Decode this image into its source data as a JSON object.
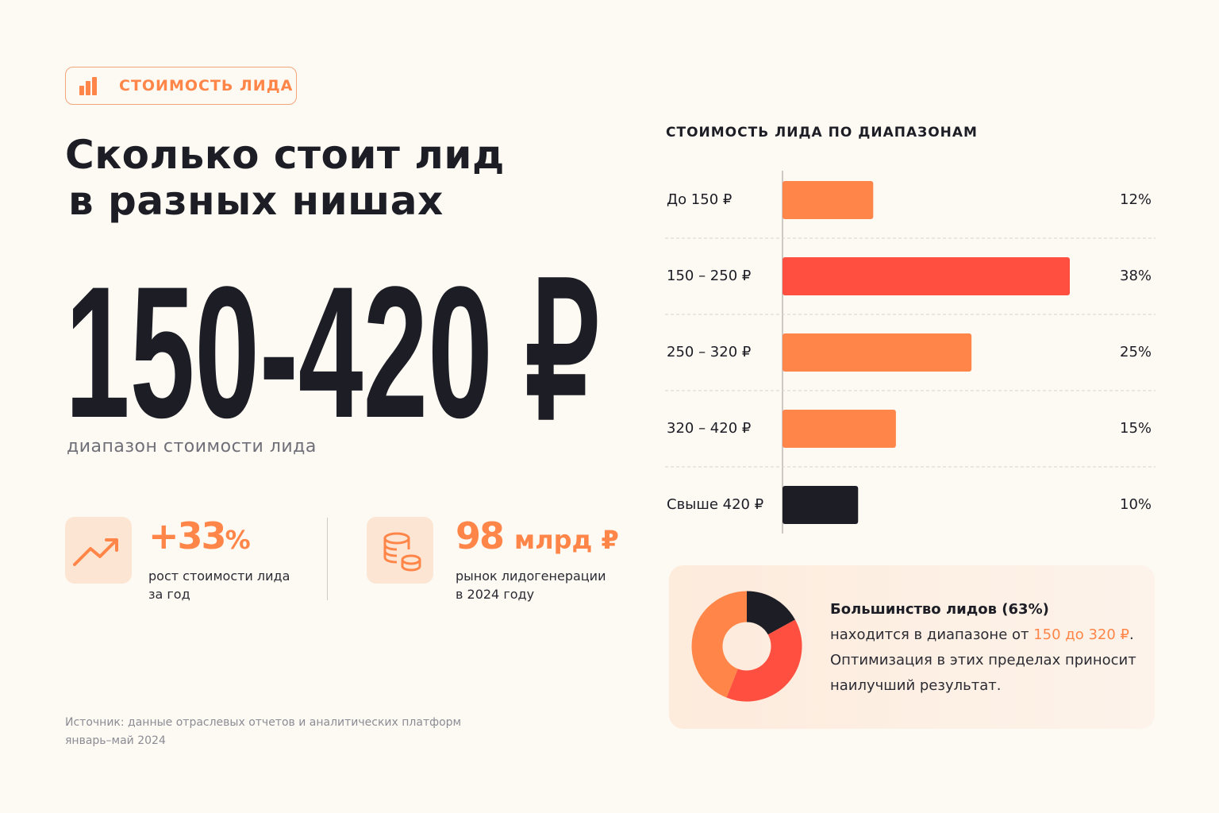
{
  "badge": "СТОИМОСТЬ ЛИДА",
  "title": [
    "Сколько стоит лид",
    "в разных нишах"
  ],
  "hero": {
    "value": "150-420 ₽",
    "caption": "диапазон стоимости лида"
  },
  "stats": [
    {
      "value": "+33",
      "unit": "%",
      "description": [
        "рост стоимости лида",
        "за год"
      ]
    },
    {
      "value": "98",
      "unit": "млрд ₽",
      "description": [
        "рынок лидогенерации",
        "в 2024 году"
      ]
    }
  ],
  "source": [
    "Источник: данные отраслевых отчетов и аналитических платформ",
    "январь–май 2024"
  ],
  "callout": {
    "heading": "Большинство лидов (63%)",
    "text_before": "находится в диапазоне от ",
    "highlight": "150 до 320 ₽",
    "text_after": ".",
    "lines": [
      "Оптимизация в этих пределах приносит",
      "наилучший результат."
    ]
  },
  "chart_data": [
    {
      "type": "bar",
      "orientation": "horizontal",
      "title": "СТОИМОСТЬ ЛИДА ПО ДИАПАЗОНАМ",
      "categories": [
        "До 150 ₽",
        "150 – 250 ₽",
        "250 – 320 ₽",
        "320 – 420 ₽",
        "Свыше 420 ₽"
      ],
      "values": [
        12,
        38,
        25,
        15,
        10
      ],
      "value_labels": [
        "12%",
        "38%",
        "25%",
        "15%",
        "10%"
      ],
      "colors": [
        "#ff8648",
        "#ff4f40",
        "#ff8648",
        "#ff8648",
        "#1d1d25"
      ]
    },
    {
      "type": "pie",
      "donut": true,
      "values": [
        17,
        39,
        44
      ],
      "colors": [
        "#1d1d25",
        "#ff4f40",
        "#ff8648"
      ]
    }
  ]
}
